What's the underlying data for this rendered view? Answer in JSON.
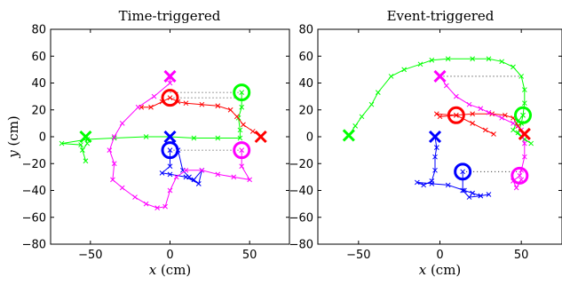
{
  "chart_data": [
    {
      "type": "scatter",
      "title": "Time-triggered",
      "xlabel": "x (cm)",
      "ylabel": "y (cm)",
      "xlim": [
        -75,
        75
      ],
      "ylim": [
        -80,
        80
      ],
      "xticks": [
        -50,
        0,
        50
      ],
      "yticks": [
        -80,
        -60,
        -40,
        -20,
        0,
        20,
        40,
        60,
        80
      ],
      "grid": false,
      "series": [
        {
          "color": "#00ff00",
          "start": [
            -53,
            0
          ],
          "goal": [
            45,
            33
          ],
          "path": [
            [
              -53,
              0
            ],
            [
              -52,
              -5
            ],
            [
              -55,
              -10
            ],
            [
              -53,
              -18
            ],
            [
              -56,
              -6
            ],
            [
              -68,
              -5
            ],
            [
              -52,
              -2
            ],
            [
              -35,
              -1
            ],
            [
              -15,
              0
            ],
            [
              0,
              0
            ],
            [
              15,
              -1
            ],
            [
              30,
              -1
            ],
            [
              44,
              -1
            ],
            [
              44,
              5
            ],
            [
              43,
              14
            ],
            [
              45,
              22
            ],
            [
              45,
              33
            ]
          ]
        },
        {
          "color": "#ff0000",
          "start": [
            57,
            0
          ],
          "goal": [
            0,
            29
          ],
          "path": [
            [
              57,
              0
            ],
            [
              52,
              4
            ],
            [
              46,
              9
            ],
            [
              42,
              15
            ],
            [
              38,
              20
            ],
            [
              30,
              23
            ],
            [
              20,
              24
            ],
            [
              10,
              25
            ],
            [
              5,
              26
            ],
            [
              0,
              29
            ],
            [
              -5,
              26
            ],
            [
              -12,
              22
            ],
            [
              -18,
              22
            ]
          ]
        },
        {
          "color": "#0000ff",
          "start": [
            0,
            0
          ],
          "goal": [
            0,
            -10
          ],
          "path": [
            [
              0,
              0
            ],
            [
              5,
              -10
            ],
            [
              8,
              -25
            ],
            [
              12,
              -30
            ],
            [
              18,
              -35
            ],
            [
              15,
              -32
            ],
            [
              20,
              -25
            ],
            [
              18,
              -35
            ],
            [
              10,
              -30
            ],
            [
              0,
              -28
            ],
            [
              -5,
              -27
            ],
            [
              0,
              -22
            ],
            [
              0,
              -10
            ]
          ]
        },
        {
          "color": "#ff00ff",
          "start": [
            0,
            45
          ],
          "goal": [
            45,
            -10
          ],
          "path": [
            [
              0,
              45
            ],
            [
              0,
              40
            ],
            [
              -10,
              30
            ],
            [
              -20,
              22
            ],
            [
              -30,
              10
            ],
            [
              -35,
              0
            ],
            [
              -38,
              -10
            ],
            [
              -35,
              -20
            ],
            [
              -36,
              -32
            ],
            [
              -30,
              -38
            ],
            [
              -22,
              -45
            ],
            [
              -15,
              -50
            ],
            [
              -8,
              -53
            ],
            [
              -3,
              -52
            ],
            [
              0,
              -40
            ],
            [
              4,
              -30
            ],
            [
              10,
              -25
            ],
            [
              20,
              -25
            ],
            [
              30,
              -28
            ],
            [
              40,
              -30
            ],
            [
              50,
              -32
            ],
            [
              45,
              -22
            ],
            [
              45,
              -10
            ]
          ]
        }
      ],
      "dotted_lines": [
        [
          [
            0,
            33
          ],
          [
            45,
            33
          ]
        ],
        [
          [
            0,
            29
          ],
          [
            45,
            29
          ]
        ],
        [
          [
            0,
            -10
          ],
          [
            45,
            -10
          ]
        ]
      ]
    },
    {
      "type": "scatter",
      "title": "Event-triggered",
      "xlabel": "x (cm)",
      "ylabel": "",
      "xlim": [
        -75,
        75
      ],
      "ylim": [
        -80,
        80
      ],
      "xticks": [
        -50,
        0,
        50
      ],
      "yticks": [
        -80,
        -60,
        -40,
        -20,
        0,
        20,
        40,
        60,
        80
      ],
      "grid": false,
      "series": [
        {
          "color": "#00ff00",
          "start": [
            -56,
            1
          ],
          "goal": [
            51,
            16
          ],
          "path": [
            [
              -56,
              1
            ],
            [
              -52,
              8
            ],
            [
              -48,
              15
            ],
            [
              -42,
              24
            ],
            [
              -38,
              33
            ],
            [
              -30,
              45
            ],
            [
              -22,
              50
            ],
            [
              -12,
              54
            ],
            [
              -5,
              57
            ],
            [
              5,
              58
            ],
            [
              20,
              58
            ],
            [
              30,
              58
            ],
            [
              38,
              56
            ],
            [
              45,
              52
            ],
            [
              50,
              45
            ],
            [
              52,
              35
            ],
            [
              52,
              25
            ],
            [
              51,
              16
            ],
            [
              50,
              10
            ],
            [
              48,
              3
            ],
            [
              52,
              -2
            ],
            [
              56,
              -5
            ],
            [
              50,
              0
            ],
            [
              45,
              5
            ],
            [
              47,
              10
            ],
            [
              51,
              16
            ]
          ]
        },
        {
          "color": "#ff0000",
          "start": [
            52,
            2
          ],
          "goal": [
            10,
            16
          ],
          "path": [
            [
              52,
              2
            ],
            [
              48,
              8
            ],
            [
              45,
              14
            ],
            [
              40,
              16
            ],
            [
              32,
              17
            ],
            [
              20,
              17
            ],
            [
              10,
              16
            ],
            [
              0,
              15
            ],
            [
              -2,
              17
            ],
            [
              10,
              16
            ],
            [
              20,
              10
            ],
            [
              28,
              5
            ],
            [
              33,
              2
            ]
          ]
        },
        {
          "color": "#0000ff",
          "start": [
            -3,
            0
          ],
          "goal": [
            14,
            -26
          ],
          "path": [
            [
              -3,
              0
            ],
            [
              -2,
              -8
            ],
            [
              -3,
              -15
            ],
            [
              -3,
              -25
            ],
            [
              -5,
              -33
            ],
            [
              -10,
              -36
            ],
            [
              -14,
              -34
            ],
            [
              -5,
              -35
            ],
            [
              5,
              -36
            ],
            [
              15,
              -40
            ],
            [
              20,
              -42
            ],
            [
              25,
              -44
            ],
            [
              30,
              -43
            ],
            [
              25,
              -44
            ],
            [
              18,
              -45
            ],
            [
              14,
              -40
            ],
            [
              14,
              -26
            ]
          ]
        },
        {
          "color": "#ff00ff",
          "start": [
            0,
            45
          ],
          "goal": [
            49,
            -29
          ],
          "path": [
            [
              0,
              45
            ],
            [
              4,
              38
            ],
            [
              10,
              30
            ],
            [
              18,
              24
            ],
            [
              25,
              21
            ],
            [
              30,
              18
            ],
            [
              38,
              14
            ],
            [
              45,
              10
            ],
            [
              50,
              5
            ],
            [
              52,
              -5
            ],
            [
              52,
              -15
            ],
            [
              50,
              -25
            ],
            [
              49,
              -29
            ],
            [
              45,
              -33
            ],
            [
              47,
              -38
            ],
            [
              50,
              -32
            ]
          ]
        }
      ],
      "dotted_lines": [
        [
          [
            0,
            45
          ],
          [
            49,
            45
          ]
        ],
        [
          [
            14,
            -26
          ],
          [
            49,
            -26
          ]
        ]
      ]
    }
  ]
}
